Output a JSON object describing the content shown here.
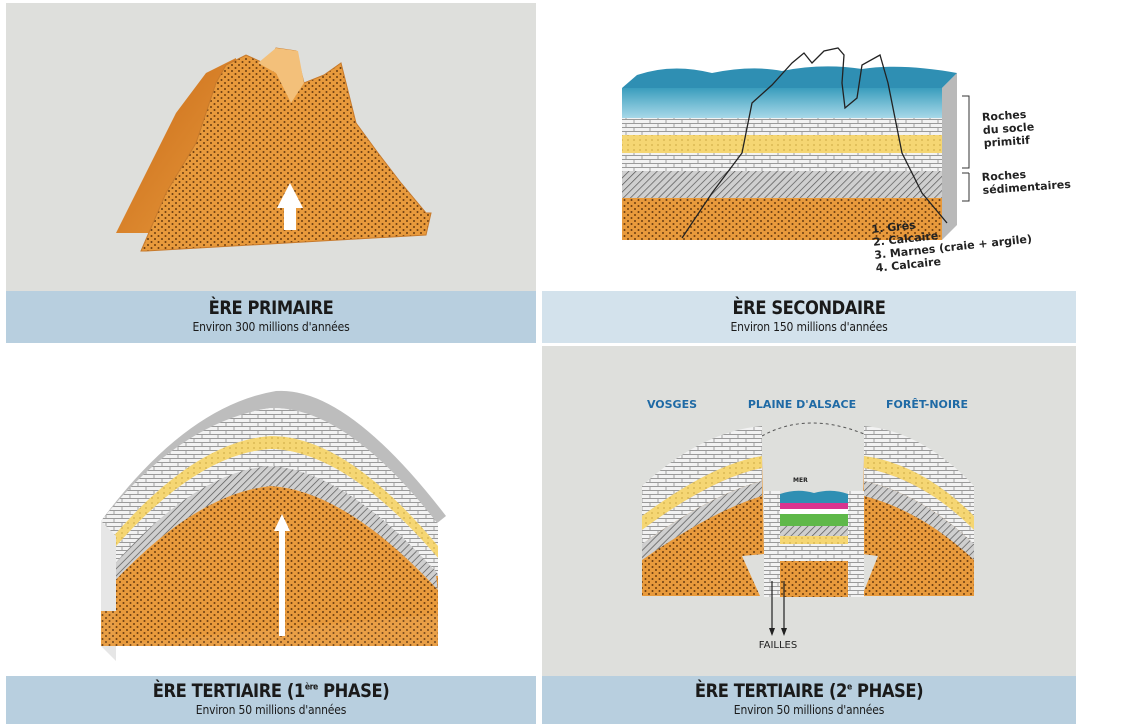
{
  "colors": {
    "panel_grey": "#dedfdc",
    "band_blue": "#b8cfdf",
    "band_light": "#d3e2ec",
    "orange": "#e89a3c",
    "label_blue": "#1f6aa5"
  },
  "panels": [
    {
      "title": "ÈRE PRIMAIRE",
      "subtitle": "Environ 300 millions d'années"
    },
    {
      "title": "ÈRE SECONDAIRE",
      "subtitle": "Environ 150 millions d'années",
      "bracket_labels": {
        "top": [
          "Roches",
          "du socle",
          "primitif"
        ],
        "bottom": [
          "Roches",
          "sédimentaires"
        ]
      },
      "legend": [
        "1. Grès",
        "2. Calcaire",
        "3. Marnes (craie + argile)",
        "4. Calcaire"
      ]
    },
    {
      "title_main": "ÈRE TERTIAIRE (1",
      "title_sup": "ère",
      "title_end": " PHASE)",
      "subtitle": "Environ 50 millions d'années"
    },
    {
      "title_main": "ÈRE TERTIAIRE (2",
      "title_sup": "e",
      "title_end": " PHASE)",
      "subtitle": "Environ 50 millions d'années",
      "region_labels": [
        "VOSGES",
        "PLAINE D'ALSACE",
        "FORÊT-NOIRE"
      ],
      "sea_label": "MER",
      "fault_label": "FAILLES"
    }
  ]
}
